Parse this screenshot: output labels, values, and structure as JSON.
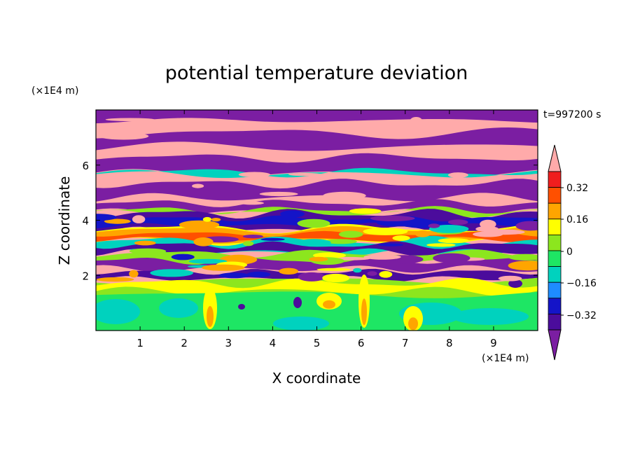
{
  "chart_data": {
    "type": "heatmap",
    "title": "potential temperature deviation",
    "xlabel": "X coordinate",
    "ylabel": "Z coordinate",
    "x_unit": "(×1E4 m)",
    "z_unit": "(×1E4 m)",
    "time_label": "t=997200 s",
    "xlim": [
      0,
      10
    ],
    "ylim": [
      0,
      8
    ],
    "x_ticks": [
      "1",
      "2",
      "3",
      "4",
      "5",
      "6",
      "7",
      "8",
      "9"
    ],
    "y_ticks": [
      "2",
      "4",
      "6"
    ],
    "colorbar": {
      "tick_labels": [
        "0.32",
        "0.16",
        "0",
        "−0.16",
        "−0.32"
      ],
      "levels": [
        -0.4,
        -0.32,
        -0.24,
        -0.16,
        -0.08,
        0,
        0.08,
        0.16,
        0.24,
        0.32,
        0.4
      ],
      "colors": [
        "#7b1ea2",
        "#4b0c9c",
        "#1414c8",
        "#1e8cff",
        "#00d2be",
        "#1ee664",
        "#8ce61e",
        "#ffff00",
        "#ffa500",
        "#ff5000",
        "#f01e1e",
        "#ffaaaa"
      ],
      "extend": "both"
    },
    "legend": "right",
    "grid": false
  }
}
